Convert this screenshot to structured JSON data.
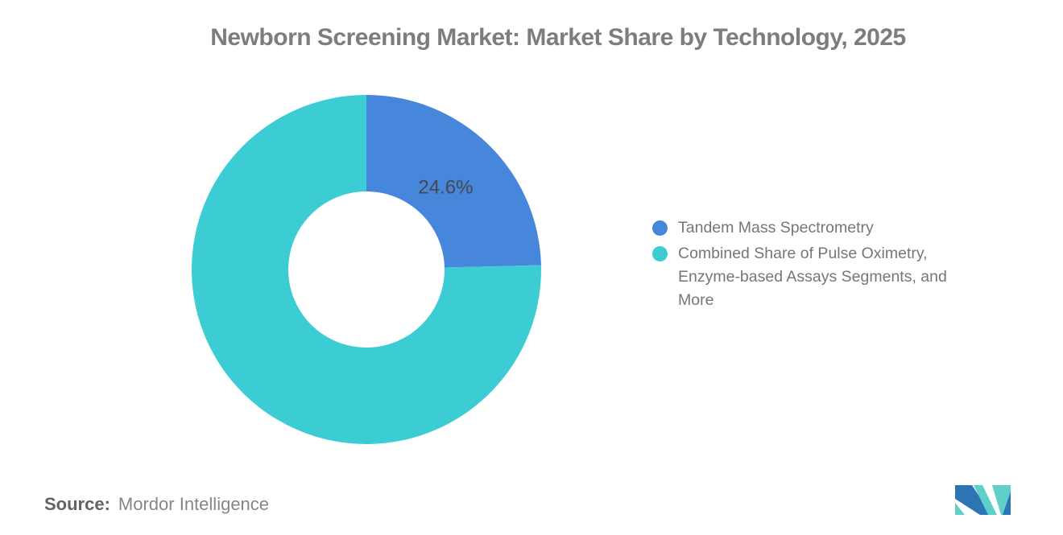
{
  "title": "Newborn Screening Market: Market Share by Technology, 2025",
  "chart_data": {
    "type": "pie",
    "subtype": "donut",
    "title": "Newborn Screening Market: Market Share by Technology, 2025",
    "start_angle_deg": 0,
    "direction": "clockwise",
    "outer_radius_px": 217,
    "inner_radius_px": 97,
    "label_radius_px": 141,
    "slices": [
      {
        "label": "Tandem Mass Spectrometry",
        "value": 24.6,
        "data_label": "24.6%",
        "color": "#4687DB",
        "show_label": true
      },
      {
        "label": "Combined Share of Pulse Oximetry, Enzyme-based Assays Segments, and More",
        "value": 75.4,
        "data_label": "",
        "color": "#3BCDD3",
        "show_label": false
      }
    ],
    "legend_position": "right",
    "grid": false
  },
  "legend": {
    "items": [
      {
        "label": "Tandem Mass Spectrometry",
        "color": "#4687DB"
      },
      {
        "label": "Combined Share of Pulse Oximetry, Enzyme-based Assays Segments, and More",
        "color": "#3BCDD3"
      }
    ]
  },
  "source": {
    "label": "Source:",
    "value": "Mordor Intelligence"
  },
  "logo": {
    "name": "mordor-intelligence-logo",
    "blue": "#2D74B4",
    "teal": "#5FCFC9"
  }
}
